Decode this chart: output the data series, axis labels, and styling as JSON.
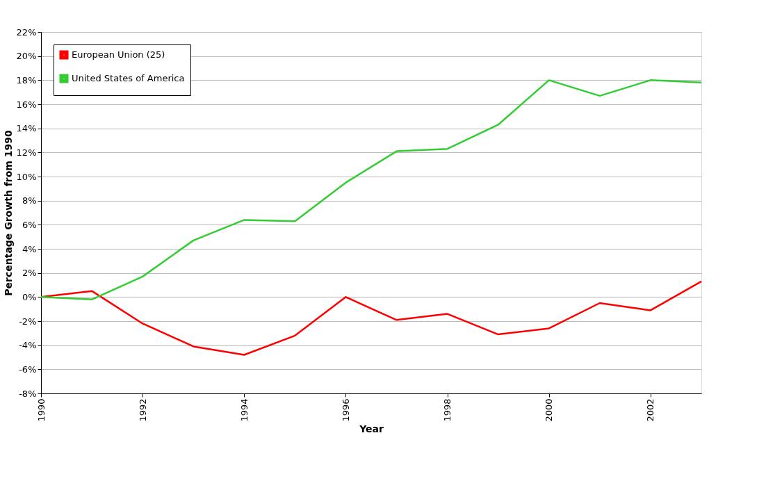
{
  "chart_data": {
    "type": "line",
    "xlabel": "Year",
    "ylabel": "Percentage Growth from 1990",
    "x": [
      1990,
      1991,
      1992,
      1993,
      1994,
      1995,
      1996,
      1997,
      1998,
      1999,
      2000,
      2001,
      2002,
      2003
    ],
    "series": [
      {
        "name": "European Union (25)",
        "color": "#ff0000",
        "values": [
          0,
          0.5,
          -2.2,
          -4.1,
          -4.8,
          -3.2,
          0,
          -1.9,
          -1.4,
          -3.1,
          -2.6,
          -0.5,
          -1.1,
          1.3
        ]
      },
      {
        "name": "United States of America",
        "color": "#33cc33",
        "values": [
          0,
          -0.2,
          1.7,
          4.7,
          6.4,
          6.3,
          9.5,
          12.1,
          12.3,
          14.3,
          18.0,
          16.7,
          18.0,
          17.8
        ]
      }
    ],
    "xlim": [
      1990,
      2003
    ],
    "xticks": [
      1990,
      1992,
      1994,
      1996,
      1998,
      2000,
      2002
    ],
    "ylim": [
      -8,
      22
    ],
    "yticks": [
      {
        "value": -8,
        "label": "-8%"
      },
      {
        "value": -6,
        "label": "-6%"
      },
      {
        "value": -4,
        "label": "-4%"
      },
      {
        "value": -2,
        "label": "-2%"
      },
      {
        "value": 0,
        "label": "0%"
      },
      {
        "value": 2,
        "label": "2%"
      },
      {
        "value": 4,
        "label": "4%"
      },
      {
        "value": 6,
        "label": "6%"
      },
      {
        "value": 8,
        "label": "8%"
      },
      {
        "value": 10,
        "label": "10%"
      },
      {
        "value": 12,
        "label": "12%"
      },
      {
        "value": 14,
        "label": "14%"
      },
      {
        "value": 16,
        "label": "16%"
      },
      {
        "value": 18,
        "label": "18%"
      },
      {
        "value": 20,
        "label": "20%"
      },
      {
        "value": 22,
        "label": "22%"
      }
    ],
    "grid": "y",
    "legend": "top left",
    "marker": "none",
    "line_style": "solid"
  }
}
